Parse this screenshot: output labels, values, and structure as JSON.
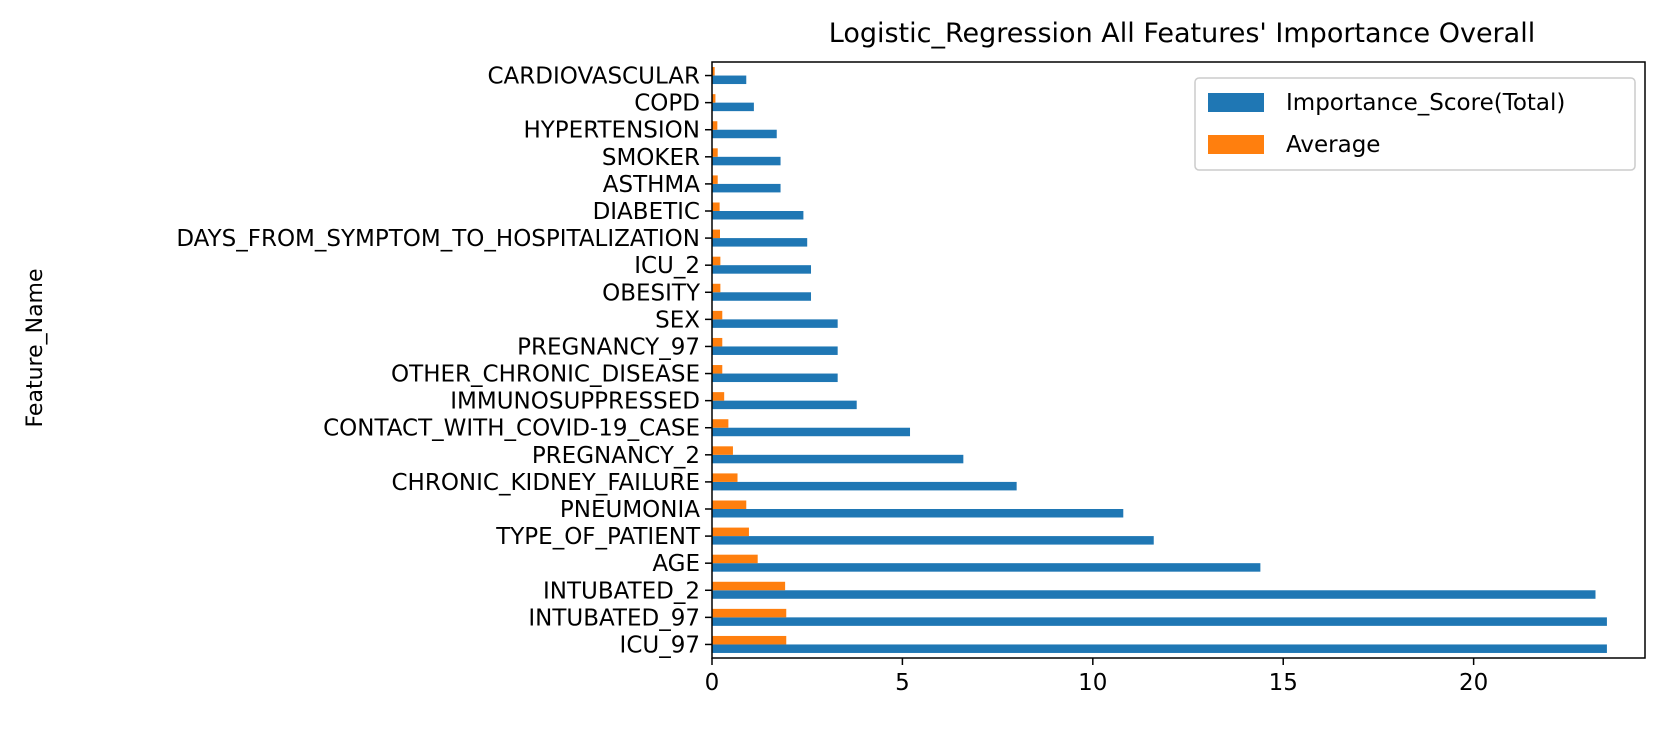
{
  "chart_data": {
    "type": "bar",
    "orientation": "horizontal",
    "title": "Logistic_Regression All Features' Importance Overall",
    "xlabel": "",
    "ylabel": "Feature_Name",
    "xlim": [
      0,
      24.5
    ],
    "xticks": [
      "0",
      "5",
      "10",
      "15",
      "20"
    ],
    "xtick_values": [
      0,
      5,
      10,
      15,
      20
    ],
    "grid": false,
    "legend_position": "top-right",
    "categories": [
      "ICU_97",
      "INTUBATED_97",
      "INTUBATED_2",
      "AGE",
      "TYPE_OF_PATIENT",
      "PNEUMONIA",
      "CHRONIC_KIDNEY_FAILURE",
      "PREGNANCY_2",
      "CONTACT_WITH_COVID-19_CASE",
      "IMMUNOSUPPRESSED",
      "OTHER_CHRONIC_DISEASE",
      "PREGNANCY_97",
      "SEX",
      "OBESITY",
      "ICU_2",
      "DAYS_FROM_SYMPTOM_TO_HOSPITALIZATION",
      "DIABETIC",
      "ASTHMA",
      "SMOKER",
      "HYPERTENSION",
      "COPD",
      "CARDIOVASCULAR"
    ],
    "series": [
      {
        "name": "Importance_Score(Total)",
        "color": "#1f77b4",
        "values": [
          23.5,
          23.5,
          23.2,
          14.4,
          11.6,
          10.8,
          8.0,
          6.6,
          5.2,
          3.8,
          3.3,
          3.3,
          3.3,
          2.6,
          2.6,
          2.5,
          2.4,
          1.8,
          1.8,
          1.7,
          1.1,
          0.9
        ]
      },
      {
        "name": "Average",
        "color": "#ff7f0e",
        "values": [
          1.95,
          1.95,
          1.92,
          1.2,
          0.97,
          0.9,
          0.67,
          0.55,
          0.43,
          0.32,
          0.27,
          0.27,
          0.27,
          0.22,
          0.22,
          0.21,
          0.2,
          0.15,
          0.15,
          0.14,
          0.09,
          0.07
        ]
      }
    ]
  }
}
